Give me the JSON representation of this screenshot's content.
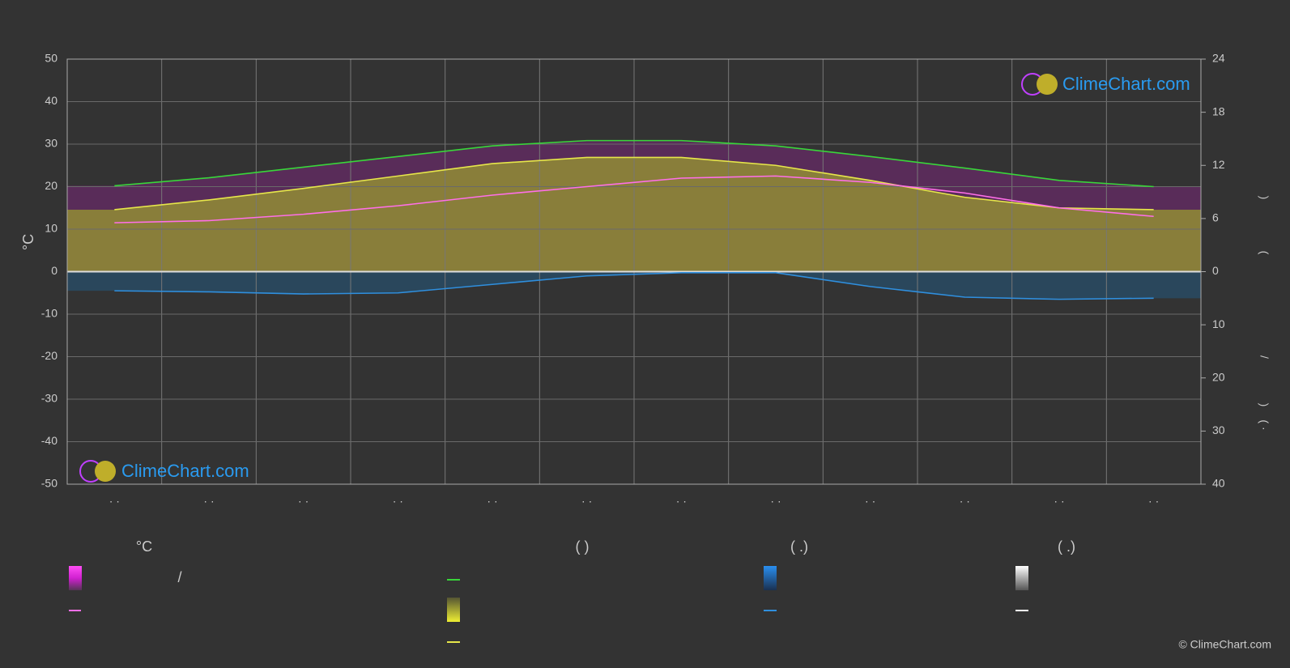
{
  "chart_data": {
    "type": "line",
    "y_label": "°C",
    "categories": [
      "· ·",
      "· ·",
      "· ·",
      "· ·",
      "· ·",
      "· ·",
      "· ·",
      "· ·",
      "· ·",
      "· ·",
      "· ·",
      "· ·"
    ],
    "ylim": [
      -50,
      50
    ],
    "yticks": [
      -50,
      -40,
      -30,
      -20,
      -10,
      0,
      10,
      20,
      30,
      40,
      50
    ],
    "y2lim": [
      0,
      24
    ],
    "y2ticks": [
      0,
      6,
      12,
      18,
      24
    ],
    "y3lim": [
      0,
      40
    ],
    "y3ticks": [
      10,
      20,
      30,
      40
    ],
    "y2_label_parts": [
      ")",
      "("
    ],
    "y3_label_parts": [
      "/",
      ")",
      "(  ·"
    ],
    "grid": true,
    "series": [
      {
        "color": "#39d63a",
        "axis": "y2",
        "values": [
          9.7,
          10.6,
          11.8,
          13.0,
          14.2,
          14.8,
          14.8,
          14.2,
          13.0,
          11.7,
          10.3,
          9.6
        ]
      },
      {
        "color": "#e6e64a",
        "axis": "y2",
        "values": [
          7.0,
          8.1,
          9.4,
          10.8,
          12.2,
          12.9,
          12.9,
          12.0,
          10.3,
          8.4,
          7.2,
          7.0
        ]
      },
      {
        "color": "#ff6fe8",
        "axis": "y",
        "values": [
          11.5,
          12,
          13.5,
          15.5,
          18,
          20,
          22,
          22.5,
          21,
          18.5,
          15,
          13
        ]
      },
      {
        "color": "#2f8fde",
        "axis": "y3",
        "values": [
          3.6,
          3.8,
          4.2,
          4.0,
          2.4,
          0.8,
          0.2,
          0.2,
          2.8,
          4.8,
          5.2,
          5.0
        ]
      }
    ],
    "legend_headers": [
      "°C",
      "(          )",
      "(    .)",
      "(    .)"
    ],
    "legend_slash": "/",
    "logo": "ClimeChart.com",
    "copyright": "© ClimeChart.com"
  }
}
